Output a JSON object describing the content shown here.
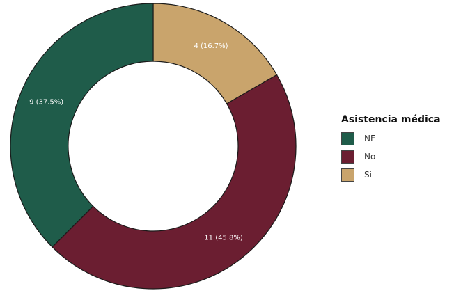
{
  "chart_data": {
    "type": "pie",
    "donut": true,
    "legend_title": "Asistencia médica",
    "legend_position": "right",
    "slices": [
      {
        "category": "NE",
        "value": 9,
        "label": "9 (37.5%)",
        "color": "#1f5c4a"
      },
      {
        "category": "No",
        "value": 11,
        "label": "11 (45.8%)",
        "color": "#6b1e31"
      },
      {
        "category": "Si",
        "value": 4,
        "label": "4 (16.7%)",
        "color": "#c9a46c"
      }
    ],
    "order_clockwise_from_top": [
      "Si",
      "No",
      "NE"
    ]
  }
}
